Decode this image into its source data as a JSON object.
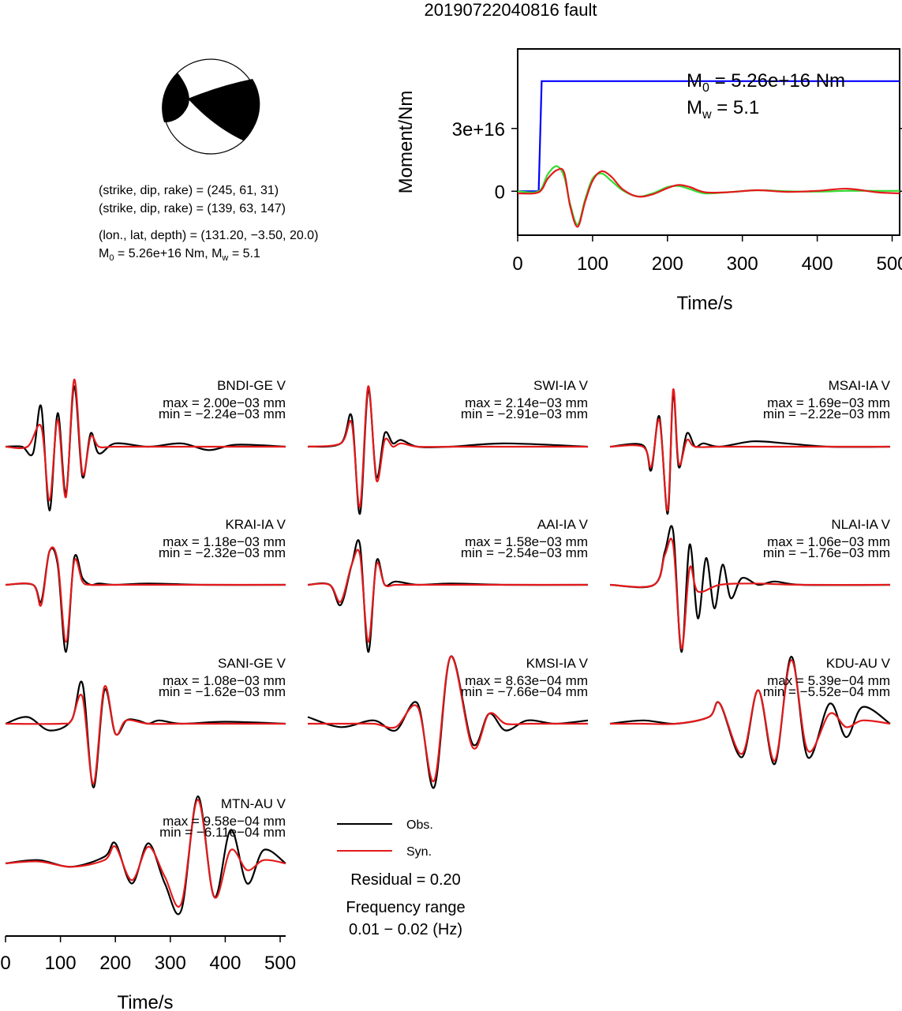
{
  "title": "20190722040816 fault",
  "focal_mechanism": {
    "line1": "(strike, dip, rake) = (245, 61, 31)",
    "line2": "(strike, dip, rake) = (139, 63, 147)",
    "line3": "(lon., lat, depth) = (131.20, −3.50, 20.0)",
    "line4": "M₀ = 5.26e+16 Nm, Mᵥᵥ = 5.1"
  },
  "moment_panel": {
    "m0_text": "M0 = 5.26e+16 Nm",
    "mw_text": "Mw = 5.1"
  },
  "legend": {
    "obs": "Obs.",
    "syn": "Syn.",
    "residual": "Residual = 0.20",
    "freq_title": "Frequency range",
    "freq_range": "0.01 − 0.02 (Hz)"
  },
  "colors": {
    "obs": "#000000",
    "syn": "#e31a1c",
    "stf": "#0000ff",
    "green": "#33dd33"
  },
  "chart_data": [
    {
      "type": "line",
      "xlabel": "Time/s",
      "ylabel": "Moment/Nm",
      "xlim": [
        0,
        510
      ],
      "ylim": [
        -2.1e+16,
        6.8e+16
      ],
      "xticks": [
        "0",
        "100",
        "200",
        "300",
        "400",
        "500"
      ],
      "yticks": [
        "0",
        "3e+16"
      ],
      "series": [
        {
          "style": "blue",
          "x": [
            0,
            28,
            32,
            510
          ],
          "y": [
            0,
            0,
            5.26e+16,
            5.26e+16
          ]
        },
        {
          "style": "green",
          "x": [
            0,
            28,
            40,
            52,
            62,
            70,
            80,
            90,
            100,
            112,
            125,
            140,
            160,
            180,
            200,
            215,
            230,
            250,
            280,
            320,
            360,
            400,
            440,
            480,
            510
          ],
          "y": [
            0,
            0,
            8000000000000000.0,
            1.2e+16,
            7000000000000000.0,
            -6000000000000000.0,
            -1.6e+16,
            -4000000000000000.0,
            6000000000000000.0,
            8500000000000000.0,
            5000000000000000.0,
            500000000000000.0,
            -2500000000000000.0,
            -1000000000000000.0,
            2000000000000000.0,
            2500000000000000.0,
            1000000000000000.0,
            -1000000000000000.0,
            -500000000000000.0,
            500000000000000.0,
            0,
            -200000000000000.0,
            200000000000000.0,
            200000000000000.0,
            200000000000000.0
          ]
        },
        {
          "style": "red",
          "x": [
            0,
            28,
            40,
            52,
            62,
            70,
            80,
            90,
            100,
            112,
            125,
            140,
            160,
            180,
            200,
            215,
            230,
            250,
            280,
            320,
            360,
            400,
            440,
            480,
            510
          ],
          "y": [
            -1000000000000000.0,
            -500000000000000.0,
            6000000000000000.0,
            1e+16,
            9000000000000000.0,
            -7000000000000000.0,
            -1.7e+16,
            -5000000000000000.0,
            5000000000000000.0,
            9500000000000000.0,
            7000000000000000.0,
            1000000000000000.0,
            -2500000000000000.0,
            -1500000000000000.0,
            1500000000000000.0,
            3000000000000000.0,
            2000000000000000.0,
            -500000000000000.0,
            -500000000000000.0,
            500000000000000.0,
            -300000000000000.0,
            200000000000000.0,
            1200000000000000.0,
            -500000000000000.0,
            -1000000000000000.0
          ]
        }
      ]
    },
    {
      "type": "line",
      "xlabel": "Time/s",
      "xlim": [
        0,
        510
      ],
      "xticks": [
        "0",
        "100",
        "200",
        "300",
        "400",
        "500"
      ],
      "traces": [
        {
          "name": "BNDI-GE V",
          "max": "max = 2.00e−03 mm",
          "min": "min = −2.24e−03 mm",
          "obs": {
            "x": [
              0,
              30,
              50,
              65,
              80,
              95,
              110,
              125,
              140,
              155,
              170,
              200,
              260,
              320,
              370,
              420,
              510
            ],
            "y": [
              0,
              0,
              -0.1,
              0.6,
              -0.95,
              0.5,
              -0.7,
              0.9,
              -0.45,
              0.2,
              -0.1,
              0.05,
              0,
              0.05,
              -0.05,
              0.03,
              0
            ]
          },
          "syn": {
            "x": [
              0,
              40,
              65,
              80,
              95,
              110,
              125,
              140,
              155,
              170,
              200,
              300,
              510
            ],
            "y": [
              0,
              0,
              0.3,
              -0.8,
              0.4,
              -0.75,
              1.0,
              -0.4,
              0.15,
              0,
              0,
              0,
              0
            ]
          }
        },
        {
          "name": "SWI-IA V",
          "max": "max = 2.14e−03 mm",
          "min": "min = −2.91e−03 mm",
          "obs": {
            "x": [
              0,
              60,
              80,
              95,
              110,
              125,
              140,
              155,
              170,
              200,
              260,
              360,
              510
            ],
            "y": [
              0,
              0.05,
              0.45,
              -1.0,
              0.85,
              -0.45,
              0.2,
              0.05,
              0.1,
              0,
              0,
              0.05,
              0
            ]
          },
          "syn": {
            "x": [
              0,
              60,
              80,
              95,
              110,
              125,
              140,
              155,
              170,
              200,
              260,
              360,
              510
            ],
            "y": [
              0,
              0.05,
              0.35,
              -0.9,
              0.9,
              -0.5,
              0.1,
              0,
              0.05,
              0,
              0,
              0,
              0
            ]
          }
        },
        {
          "name": "MSAI-IA V",
          "max": "max = 1.69e−03 mm",
          "min": "min = −2.22e−03 mm",
          "obs": {
            "x": [
              0,
              60,
              75,
              90,
              105,
              115,
              125,
              140,
              155,
              170,
              200,
              260,
              320,
              400,
              510
            ],
            "y": [
              0,
              0.02,
              -0.35,
              0.45,
              -1.0,
              0.8,
              -0.3,
              0.2,
              0,
              0.05,
              0,
              0.08,
              0.05,
              0,
              0
            ]
          },
          "syn": {
            "x": [
              0,
              60,
              75,
              90,
              105,
              115,
              125,
              140,
              155,
              200,
              300,
              510
            ],
            "y": [
              0,
              0,
              -0.3,
              0.4,
              -0.95,
              0.85,
              -0.25,
              0.1,
              0,
              0,
              0,
              0
            ]
          }
        },
        {
          "name": "KRAI-IA V",
          "max": "max = 1.18e−03 mm",
          "min": "min = −2.32e−03 mm",
          "obs": {
            "x": [
              0,
              50,
              65,
              80,
              95,
              110,
              125,
              140,
              155,
              170,
              200,
              260,
              360,
              510
            ],
            "y": [
              0,
              0,
              -0.25,
              0.5,
              0.3,
              -1.0,
              0.4,
              0.1,
              0,
              0.02,
              0,
              0.02,
              0,
              0
            ]
          },
          "syn": {
            "x": [
              0,
              50,
              65,
              80,
              95,
              110,
              125,
              140,
              155,
              200,
              300,
              510
            ],
            "y": [
              0,
              0,
              -0.3,
              0.5,
              0.35,
              -0.85,
              0.35,
              0.05,
              0,
              0,
              0,
              0
            ]
          }
        },
        {
          "name": "AAI-IA V",
          "max": "max = 1.58e−03 mm",
          "min": "min = −2.54e−03 mm",
          "obs": {
            "x": [
              0,
              40,
              60,
              80,
              95,
              110,
              125,
              140,
              160,
              200,
              260,
              360,
              510
            ],
            "y": [
              0,
              0,
              -0.3,
              0.3,
              0.6,
              -1.0,
              0.35,
              0,
              0.05,
              0,
              0.02,
              0,
              0
            ]
          },
          "syn": {
            "x": [
              0,
              40,
              60,
              80,
              95,
              110,
              125,
              140,
              160,
              200,
              300,
              510
            ],
            "y": [
              0,
              0,
              -0.25,
              0.3,
              0.45,
              -0.85,
              0.3,
              0,
              0,
              0,
              0,
              0
            ]
          }
        },
        {
          "name": "NLAI-IA V",
          "max": "max = 1.06e−03 mm",
          "min": "min = −1.76e−03 mm",
          "obs": {
            "x": [
              0,
              80,
              100,
              115,
              130,
              145,
              160,
              175,
              190,
              205,
              220,
              240,
              270,
              300,
              350,
              510
            ],
            "y": [
              0,
              0,
              0.5,
              0.8,
              -1.0,
              0.6,
              -0.5,
              0.4,
              -0.35,
              0.3,
              -0.2,
              0.1,
              0,
              0.05,
              0,
              0
            ]
          },
          "syn": {
            "x": [
              0,
              80,
              100,
              115,
              130,
              145,
              160,
              200,
              260,
              350,
              510
            ],
            "y": [
              0,
              0,
              0.45,
              0.6,
              -0.95,
              0.25,
              -0.1,
              0,
              0.02,
              0,
              0
            ]
          }
        },
        {
          "name": "SANI-GE V",
          "max": "max = 1.08e−03 mm",
          "min": "min = −1.62e−03 mm",
          "obs": {
            "x": [
              0,
              40,
              80,
              120,
              140,
              160,
              180,
              200,
              220,
              240,
              260,
              280,
              320,
              400,
              510
            ],
            "y": [
              0,
              0.1,
              -0.1,
              0.05,
              0.6,
              -0.95,
              0.5,
              -0.15,
              0.05,
              0.05,
              0,
              0.05,
              0,
              0.03,
              0
            ]
          },
          "syn": {
            "x": [
              0,
              100,
              120,
              140,
              160,
              180,
              200,
              220,
              260,
              320,
              400,
              510
            ],
            "y": [
              0,
              0,
              0.05,
              0.4,
              -0.9,
              0.55,
              -0.15,
              0.05,
              0,
              0,
              0,
              0
            ]
          }
        },
        {
          "name": "KMSI-IA V",
          "max": "max = 8.63e−04 mm",
          "min": "min = −7.66e−04 mm",
          "obs": {
            "x": [
              0,
              60,
              120,
              160,
              200,
              230,
              260,
              300,
              330,
              360,
              400,
              450,
              510
            ],
            "y": [
              0.1,
              -0.05,
              0.05,
              -0.1,
              0.3,
              -0.95,
              1.0,
              -0.3,
              0.15,
              -0.1,
              0.05,
              0,
              0.05
            ]
          },
          "syn": {
            "x": [
              0,
              60,
              120,
              160,
              200,
              230,
              260,
              300,
              330,
              360,
              400,
              450,
              510
            ],
            "y": [
              0,
              0,
              0,
              -0.05,
              0.25,
              -0.85,
              1.0,
              -0.35,
              0.15,
              0,
              0,
              0,
              0
            ]
          }
        },
        {
          "name": "KDU-AU V",
          "max": "max = 5.39e−04 mm",
          "min": "min = −5.52e−04 mm",
          "obs": {
            "x": [
              0,
              60,
              120,
              180,
              200,
              240,
              270,
              300,
              330,
              360,
              400,
              430,
              460,
              510
            ],
            "y": [
              0,
              0.05,
              0,
              0.1,
              0.3,
              -0.5,
              0.5,
              -0.6,
              1.0,
              -0.5,
              0.3,
              -0.2,
              0.25,
              0
            ]
          },
          "syn": {
            "x": [
              0,
              60,
              120,
              180,
              200,
              240,
              270,
              300,
              330,
              360,
              400,
              430,
              460,
              510
            ],
            "y": [
              0,
              0,
              0,
              0.1,
              0.3,
              -0.45,
              0.5,
              -0.55,
              0.95,
              -0.4,
              0.15,
              -0.05,
              0.05,
              0
            ]
          }
        },
        {
          "name": "MTN-AU V",
          "max": "max = 9.58e−04 mm",
          "min": "min = −6.11e−04 mm",
          "obs": {
            "x": [
              0,
              60,
              120,
              180,
              200,
              230,
              260,
              290,
              320,
              350,
              380,
              410,
              440,
              470,
              510
            ],
            "y": [
              0,
              0.05,
              -0.05,
              0.1,
              0.3,
              -0.3,
              0.3,
              -0.3,
              -0.7,
              1.0,
              -0.5,
              0.5,
              -0.3,
              0.2,
              0
            ]
          },
          "syn": {
            "x": [
              0,
              60,
              120,
              180,
              200,
              230,
              260,
              290,
              320,
              350,
              380,
              410,
              440,
              470,
              510
            ],
            "y": [
              0,
              0.03,
              -0.05,
              0.05,
              0.25,
              -0.25,
              0.25,
              -0.2,
              -0.6,
              0.95,
              -0.5,
              0.2,
              -0.1,
              0.05,
              0
            ]
          }
        }
      ]
    }
  ]
}
